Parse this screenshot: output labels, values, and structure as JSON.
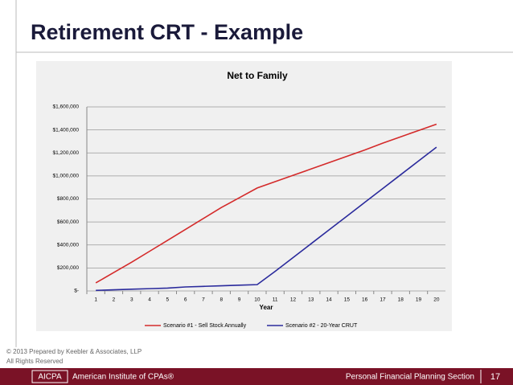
{
  "slide": {
    "title": "Retirement CRT - Example",
    "copyright": "© 2013 Prepared by Keebler & Associates, LLP",
    "rights": "All Rights Reserved",
    "logo": "AICPA",
    "org": "American Institute of CPAs®",
    "section": "Personal Financial Planning Section",
    "page": "17"
  },
  "chart_data": {
    "type": "line",
    "title": "Net to Family",
    "x_label": "Year",
    "categories": [
      "1",
      "2",
      "3",
      "4",
      "5",
      "6",
      "7",
      "8",
      "9",
      "10",
      "11",
      "12",
      "13",
      "14",
      "15",
      "16",
      "17",
      "18",
      "19",
      "20"
    ],
    "series": [
      {
        "name": "Scenario #1 - Sell Stock Annually",
        "color": "#d42a2a",
        "values": [
          70000,
          160000,
          250000,
          345000,
          440000,
          535000,
          630000,
          725000,
          810000,
          895000,
          950000,
          1005000,
          1060000,
          1115000,
          1170000,
          1225000,
          1285000,
          1340000,
          1395000,
          1450000
        ]
      },
      {
        "name": "Scenario #2 - 20-Year CRUT",
        "color": "#2a2a9c",
        "values": [
          5000,
          10000,
          15000,
          20000,
          25000,
          35000,
          40000,
          45000,
          50000,
          55000,
          170000,
          290000,
          410000,
          530000,
          650000,
          770000,
          890000,
          1010000,
          1130000,
          1250000
        ]
      }
    ],
    "ylim": [
      0,
      1600000
    ],
    "yticks": [
      {
        "value": 0,
        "label": "$-"
      },
      {
        "value": 200000,
        "label": "$200,000"
      },
      {
        "value": 400000,
        "label": "$400,000"
      },
      {
        "value": 600000,
        "label": "$600,000"
      },
      {
        "value": 800000,
        "label": "$800,000"
      },
      {
        "value": 1000000,
        "label": "$1,000,000"
      },
      {
        "value": 1200000,
        "label": "$1,200,000"
      },
      {
        "value": 1400000,
        "label": "$1,400,000"
      },
      {
        "value": 1600000,
        "label": "$1,600,000"
      }
    ],
    "grid": true
  }
}
